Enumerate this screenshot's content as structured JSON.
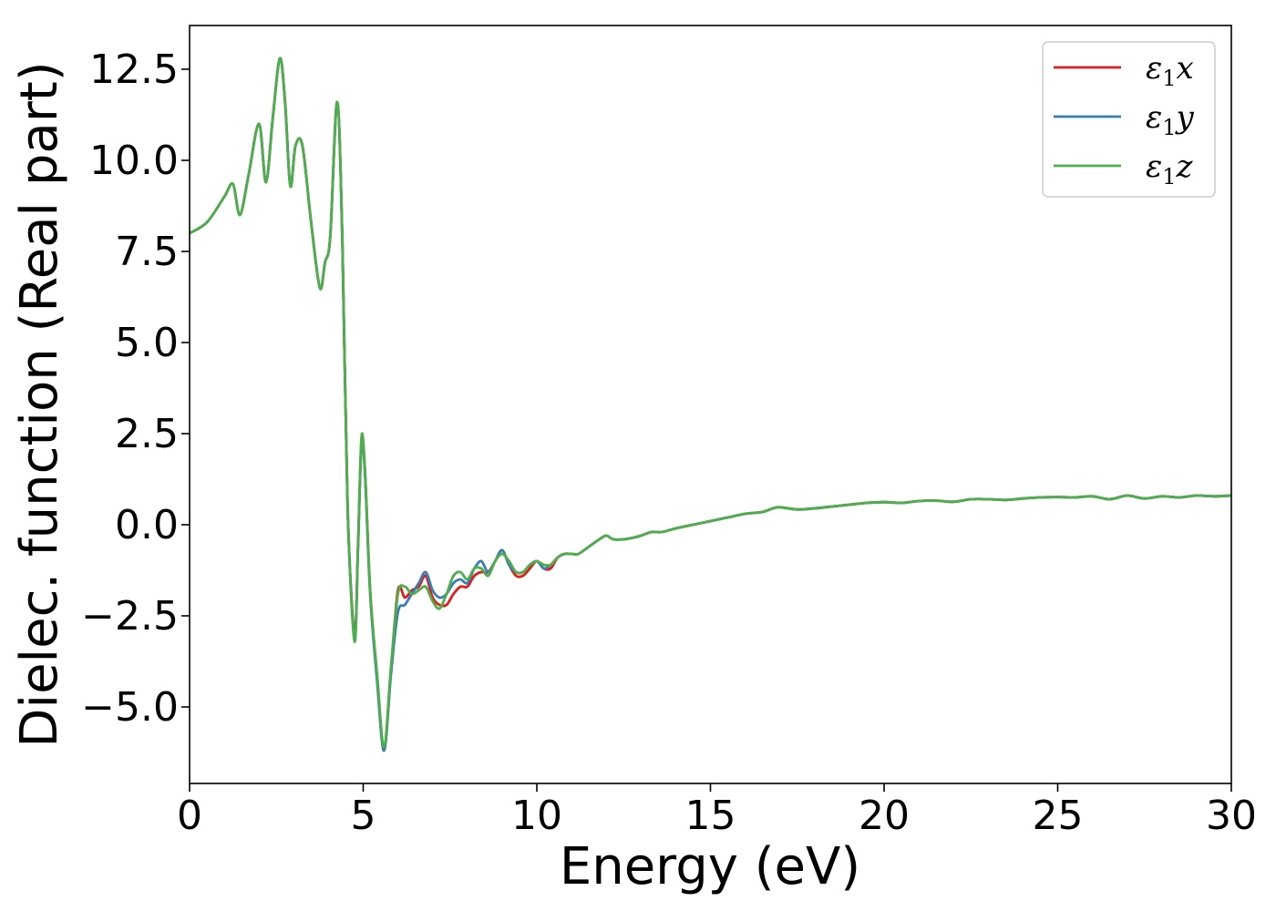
{
  "chart_data": {
    "type": "line",
    "title": "",
    "xlabel": "Energy (eV)",
    "ylabel": "Dielec. function (Real part)",
    "xlim": [
      0,
      30
    ],
    "ylim": [
      -7.1,
      13.7
    ],
    "xticks": [
      0,
      5,
      10,
      15,
      20,
      25,
      30
    ],
    "xtick_labels": [
      "0",
      "5",
      "10",
      "15",
      "20",
      "25",
      "30"
    ],
    "yticks": [
      -5.0,
      -2.5,
      0.0,
      2.5,
      5.0,
      7.5,
      10.0,
      12.5
    ],
    "ytick_labels": [
      "−5.0",
      "−2.5",
      "0.0",
      "2.5",
      "5.0",
      "7.5",
      "10.0",
      "12.5"
    ],
    "grid": false,
    "legend_position": "top-right",
    "series": [
      {
        "name": "ε1x",
        "legend_symbol": "ε",
        "legend_sub": "1",
        "legend_var": "x",
        "color": "#e41a1c",
        "x": [
          0,
          0.5,
          1.0,
          1.25,
          1.45,
          1.7,
          2.0,
          2.2,
          2.4,
          2.6,
          2.75,
          2.9,
          3.05,
          3.25,
          3.5,
          3.75,
          3.9,
          4.05,
          4.25,
          4.4,
          4.55,
          4.75,
          4.85,
          4.95,
          5.05,
          5.2,
          5.4,
          5.6,
          5.8,
          6.0,
          6.2,
          6.4,
          6.6,
          6.8,
          7.0,
          7.2,
          7.4,
          7.6,
          7.8,
          8.0,
          8.2,
          8.4,
          8.6,
          8.8,
          9.0,
          9.2,
          9.4,
          9.6,
          9.8,
          10.0,
          10.2,
          10.4,
          10.6,
          10.8,
          11.0,
          11.2,
          11.5,
          11.8,
          12.0,
          12.2,
          12.5,
          12.8,
          13.0,
          13.3,
          13.6,
          14.0,
          14.5,
          15.0,
          15.5,
          16.0,
          16.5,
          16.8,
          17.0,
          17.5,
          18.0,
          18.5,
          19.0,
          19.5,
          20.0,
          20.5,
          21.0,
          21.5,
          22.0,
          22.5,
          23.0,
          23.5,
          24.0,
          24.5,
          25.0,
          25.5,
          26.0,
          26.5,
          27.0,
          27.5,
          28.0,
          28.5,
          29.0,
          29.5,
          30.0
        ],
        "y": [
          8.0,
          8.3,
          9.0,
          9.35,
          8.5,
          9.6,
          11.0,
          9.4,
          11.2,
          12.8,
          11.6,
          9.3,
          10.4,
          10.4,
          8.3,
          6.5,
          7.2,
          7.9,
          11.6,
          7.8,
          0.5,
          -3.0,
          -0.6,
          2.3,
          1.5,
          -1.8,
          -4.2,
          -6.2,
          -4.0,
          -1.8,
          -2.0,
          -1.8,
          -1.7,
          -1.4,
          -2.0,
          -2.2,
          -2.2,
          -1.9,
          -1.7,
          -1.7,
          -1.4,
          -1.3,
          -1.3,
          -1.0,
          -0.7,
          -1.1,
          -1.4,
          -1.4,
          -1.2,
          -1.0,
          -1.2,
          -1.2,
          -0.9,
          -0.8,
          -0.8,
          -0.8,
          -0.6,
          -0.4,
          -0.3,
          -0.4,
          -0.4,
          -0.35,
          -0.3,
          -0.2,
          -0.2,
          -0.1,
          0.0,
          0.1,
          0.2,
          0.3,
          0.35,
          0.45,
          0.48,
          0.42,
          0.45,
          0.5,
          0.55,
          0.6,
          0.62,
          0.6,
          0.65,
          0.66,
          0.63,
          0.7,
          0.7,
          0.68,
          0.72,
          0.75,
          0.76,
          0.75,
          0.78,
          0.7,
          0.8,
          0.72,
          0.78,
          0.75,
          0.8,
          0.78,
          0.8
        ]
      },
      {
        "name": "ε1y",
        "legend_symbol": "ε",
        "legend_sub": "1",
        "legend_var": "y",
        "color": "#377eb8",
        "x": [
          0,
          0.5,
          1.0,
          1.25,
          1.45,
          1.7,
          2.0,
          2.2,
          2.4,
          2.6,
          2.75,
          2.9,
          3.05,
          3.25,
          3.5,
          3.75,
          3.9,
          4.05,
          4.25,
          4.4,
          4.55,
          4.75,
          4.85,
          4.95,
          5.05,
          5.2,
          5.4,
          5.6,
          5.8,
          6.0,
          6.2,
          6.4,
          6.6,
          6.8,
          7.0,
          7.2,
          7.4,
          7.6,
          7.8,
          8.0,
          8.2,
          8.4,
          8.6,
          8.8,
          9.0,
          9.2,
          9.4,
          9.6,
          9.8,
          10.0,
          10.2,
          10.4,
          10.6,
          10.8,
          11.0,
          11.2,
          11.5,
          11.8,
          12.0,
          12.2,
          12.5,
          12.8,
          13.0,
          13.3,
          13.6,
          14.0,
          14.5,
          15.0,
          15.5,
          16.0,
          16.5,
          16.8,
          17.0,
          17.5,
          18.0,
          18.5,
          19.0,
          19.5,
          20.0,
          20.5,
          21.0,
          21.5,
          22.0,
          22.5,
          23.0,
          23.5,
          24.0,
          24.5,
          25.0,
          25.5,
          26.0,
          26.5,
          27.0,
          27.5,
          28.0,
          28.5,
          29.0,
          29.5,
          30.0
        ],
        "y": [
          8.0,
          8.3,
          9.0,
          9.35,
          8.5,
          9.6,
          11.0,
          9.4,
          11.2,
          12.8,
          11.6,
          9.3,
          10.4,
          10.4,
          8.3,
          6.5,
          7.2,
          7.9,
          11.6,
          7.8,
          0.5,
          -3.1,
          -0.7,
          2.2,
          1.4,
          -1.9,
          -4.3,
          -6.2,
          -4.1,
          -2.4,
          -2.2,
          -1.9,
          -1.6,
          -1.3,
          -1.8,
          -2.0,
          -1.9,
          -1.6,
          -1.5,
          -1.6,
          -1.2,
          -1.0,
          -1.3,
          -1.0,
          -0.7,
          -1.1,
          -1.3,
          -1.3,
          -1.1,
          -1.0,
          -1.2,
          -1.1,
          -0.9,
          -0.8,
          -0.8,
          -0.8,
          -0.6,
          -0.4,
          -0.3,
          -0.4,
          -0.4,
          -0.35,
          -0.3,
          -0.2,
          -0.2,
          -0.1,
          0.0,
          0.1,
          0.2,
          0.3,
          0.35,
          0.45,
          0.48,
          0.42,
          0.45,
          0.5,
          0.55,
          0.6,
          0.62,
          0.6,
          0.65,
          0.66,
          0.63,
          0.7,
          0.7,
          0.68,
          0.72,
          0.75,
          0.76,
          0.75,
          0.78,
          0.7,
          0.8,
          0.72,
          0.78,
          0.75,
          0.8,
          0.78,
          0.8
        ]
      },
      {
        "name": "ε1z",
        "legend_symbol": "ε",
        "legend_sub": "1",
        "legend_var": "z",
        "color": "#4daf4a",
        "x": [
          0,
          0.5,
          1.0,
          1.25,
          1.45,
          1.7,
          2.0,
          2.2,
          2.4,
          2.6,
          2.75,
          2.9,
          3.05,
          3.25,
          3.5,
          3.75,
          3.9,
          4.05,
          4.25,
          4.4,
          4.55,
          4.75,
          4.85,
          4.95,
          5.05,
          5.2,
          5.4,
          5.6,
          5.8,
          6.0,
          6.2,
          6.4,
          6.6,
          6.8,
          7.0,
          7.2,
          7.4,
          7.6,
          7.8,
          8.0,
          8.2,
          8.4,
          8.6,
          8.8,
          9.0,
          9.2,
          9.4,
          9.6,
          9.8,
          10.0,
          10.2,
          10.4,
          10.6,
          10.8,
          11.0,
          11.2,
          11.5,
          11.8,
          12.0,
          12.2,
          12.5,
          12.8,
          13.0,
          13.3,
          13.6,
          14.0,
          14.5,
          15.0,
          15.5,
          16.0,
          16.5,
          16.8,
          17.0,
          17.5,
          18.0,
          18.5,
          19.0,
          19.5,
          20.0,
          20.5,
          21.0,
          21.5,
          22.0,
          22.5,
          23.0,
          23.5,
          24.0,
          24.5,
          25.0,
          25.5,
          26.0,
          26.5,
          27.0,
          27.5,
          28.0,
          28.5,
          29.0,
          29.5,
          30.0
        ],
        "y": [
          8.0,
          8.3,
          9.0,
          9.35,
          8.5,
          9.6,
          11.0,
          9.4,
          11.2,
          12.8,
          11.6,
          9.3,
          10.4,
          10.4,
          8.3,
          6.5,
          7.2,
          7.9,
          11.6,
          7.8,
          0.5,
          -3.2,
          -0.6,
          2.4,
          1.5,
          -1.8,
          -4.1,
          -6.1,
          -3.9,
          -1.9,
          -1.7,
          -1.9,
          -1.8,
          -1.7,
          -2.1,
          -2.3,
          -1.9,
          -1.4,
          -1.3,
          -1.5,
          -1.2,
          -1.2,
          -1.4,
          -1.0,
          -0.8,
          -1.0,
          -1.3,
          -1.3,
          -1.1,
          -1.0,
          -1.1,
          -1.1,
          -0.9,
          -0.8,
          -0.8,
          -0.8,
          -0.6,
          -0.4,
          -0.3,
          -0.4,
          -0.4,
          -0.35,
          -0.3,
          -0.2,
          -0.2,
          -0.1,
          0.0,
          0.1,
          0.2,
          0.3,
          0.35,
          0.45,
          0.48,
          0.42,
          0.45,
          0.5,
          0.55,
          0.6,
          0.62,
          0.6,
          0.65,
          0.66,
          0.63,
          0.7,
          0.7,
          0.68,
          0.72,
          0.75,
          0.76,
          0.75,
          0.78,
          0.7,
          0.8,
          0.72,
          0.78,
          0.75,
          0.8,
          0.78,
          0.8
        ]
      }
    ]
  }
}
